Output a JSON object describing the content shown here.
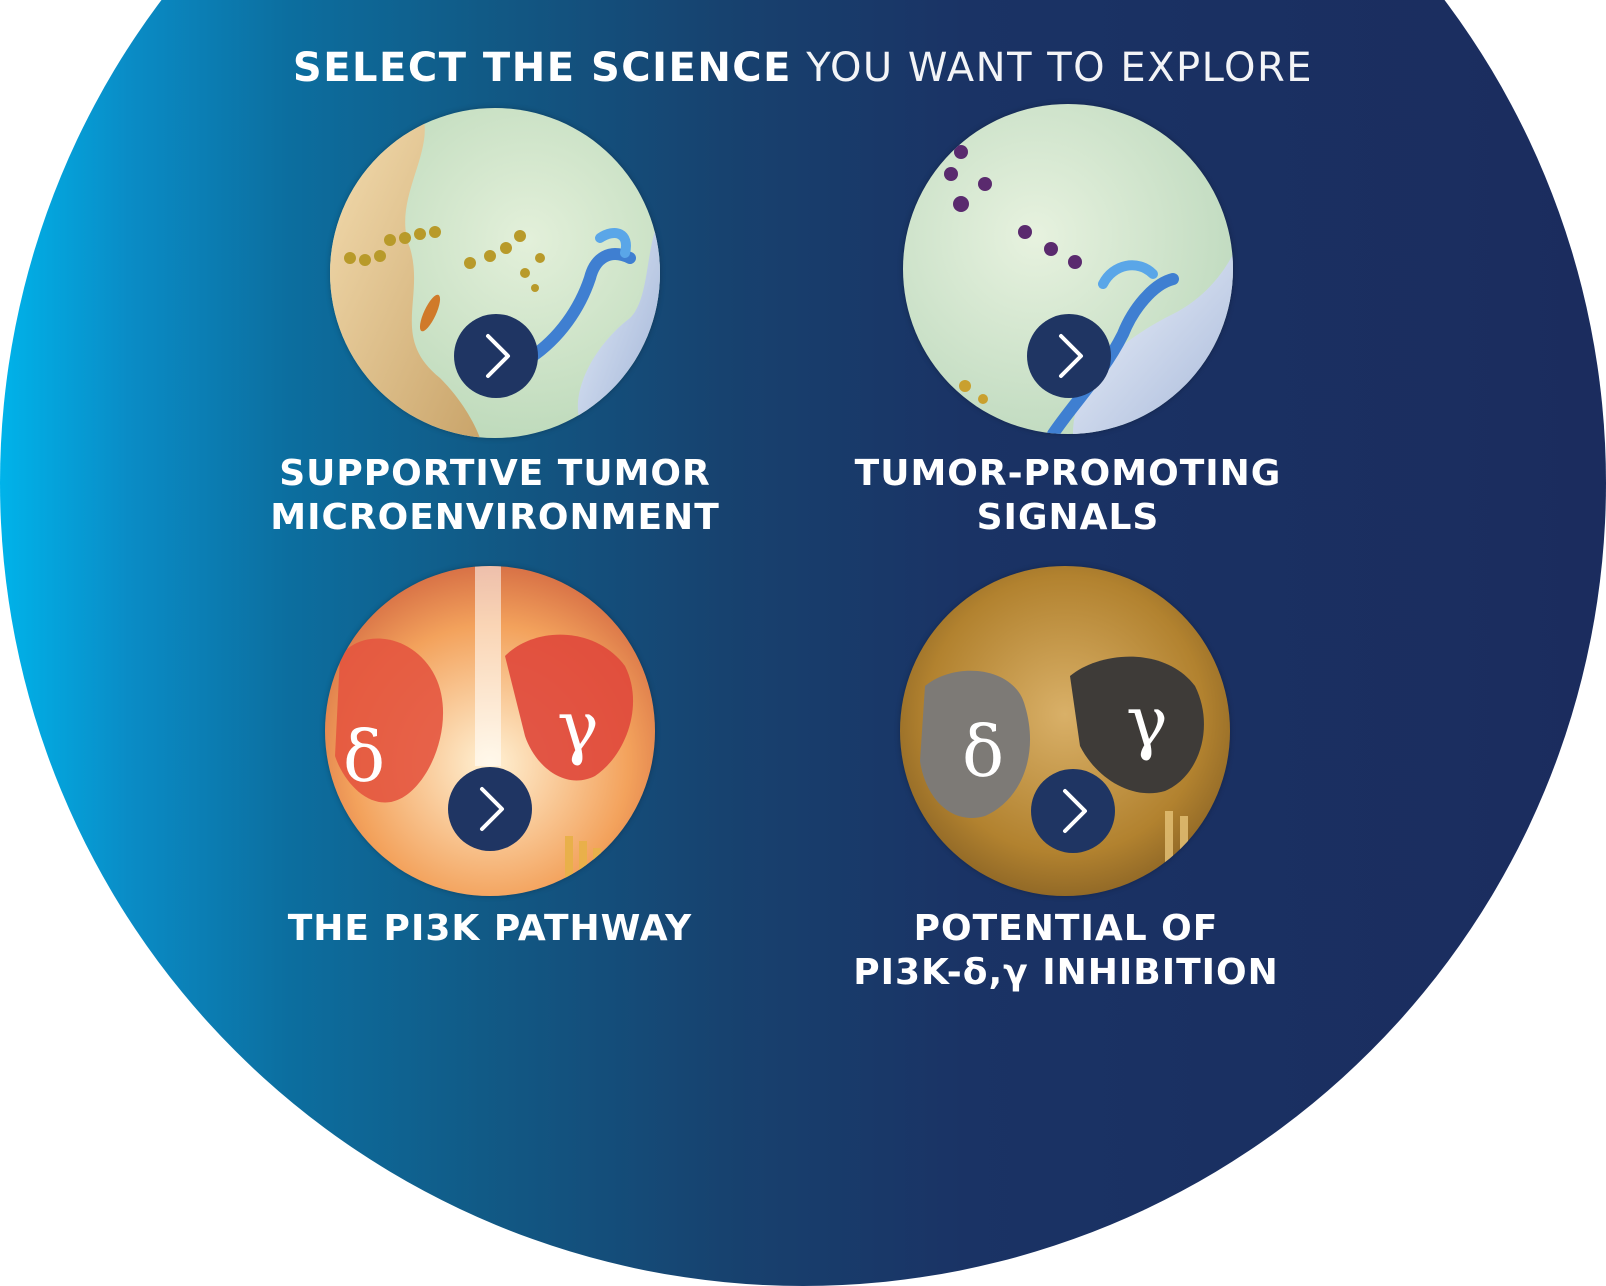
{
  "heading": {
    "bold": "SELECT THE SCIENCE",
    "light": "YOU WANT TO EXPLORE"
  },
  "cards": [
    {
      "line1": "SUPPORTIVE TUMOR",
      "line2": "MICROENVIRONMENT",
      "icon": "chevron-right-icon"
    },
    {
      "line1": "TUMOR-PROMOTING",
      "line2": "SIGNALS",
      "icon": "chevron-right-icon"
    },
    {
      "line1": "THE PI3K PATHWAY",
      "line2": "",
      "icon": "chevron-right-icon"
    },
    {
      "line1": "POTENTIAL OF",
      "line2": "PI3K-δ,γ INHIBITION",
      "icon": "chevron-right-icon"
    }
  ],
  "thumb_glyphs": {
    "delta": "δ",
    "gamma": "γ"
  },
  "colors": {
    "gradient_left": "#00b3ea",
    "gradient_right": "#1b2c5e",
    "button": "#1f3563",
    "text": "#ffffff"
  }
}
